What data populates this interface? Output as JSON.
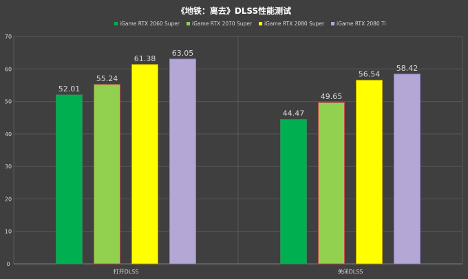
{
  "chart_data": {
    "type": "bar",
    "title": "《地铁：离去》DLSS性能测试",
    "categories": [
      "打开DLSS",
      "关闭DLSS"
    ],
    "series": [
      {
        "name": "iGame RTX 2060 Super",
        "values": [
          52.01,
          44.47
        ],
        "color": "#00b050",
        "stroke": "#2e8b57"
      },
      {
        "name": "iGame RTX 2070 Super",
        "values": [
          55.24,
          49.65
        ],
        "color": "#92d050",
        "stroke": "#c0504d"
      },
      {
        "name": "iGame RTX 2080 Super",
        "values": [
          61.38,
          56.54
        ],
        "color": "#ffff00",
        "stroke": "#c0a000"
      },
      {
        "name": "iGame RTX 2080 Ti",
        "values": [
          63.05,
          58.42
        ],
        "color": "#b4a7d6",
        "stroke": "#8e7cc3"
      }
    ],
    "ylim": [
      0,
      70
    ],
    "yticks": [
      0,
      10,
      20,
      30,
      40,
      50,
      60,
      70
    ],
    "grid": true,
    "legend_position": "top",
    "background": "#3f3f3f",
    "gridline_color": "#595959",
    "text_color": "#d9d9d9"
  }
}
